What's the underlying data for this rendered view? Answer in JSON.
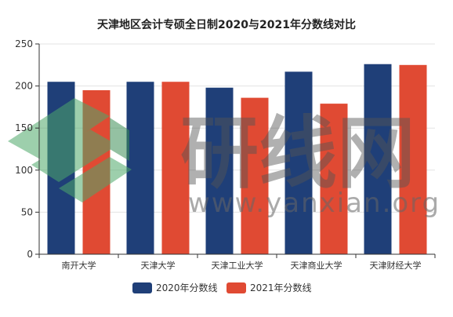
{
  "chart_data": {
    "type": "bar",
    "title": "天津地区会计专硕全日制2020与2021年分数线对比",
    "categories": [
      "南开大学",
      "天津大学",
      "天津工业大学",
      "天津商业大学",
      "天津财经大学"
    ],
    "series": [
      {
        "name": "2020年分数线",
        "color": "#1f3f78",
        "values": [
          205,
          205,
          198,
          217,
          226
        ]
      },
      {
        "name": "2021年分数线",
        "color": "#e04a33",
        "values": [
          195,
          205,
          186,
          179,
          225
        ]
      }
    ],
    "ylim": [
      0,
      250
    ],
    "yticks": [
      0,
      50,
      100,
      150,
      200,
      250
    ],
    "grid": true,
    "legend_position": "bottom-center"
  },
  "watermark": {
    "text_cn": "研线网",
    "url": "www.yanxian.org"
  }
}
